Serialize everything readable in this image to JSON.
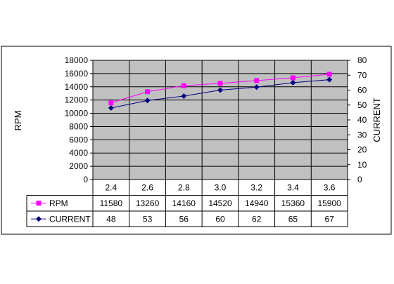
{
  "chart_data": {
    "type": "line",
    "x": [
      2.4,
      2.6,
      2.8,
      3.0,
      3.2,
      3.4,
      3.6
    ],
    "x_labels": [
      "2.4",
      "2.6",
      "2.8",
      "3.0",
      "3.2",
      "3.4",
      "3.6"
    ],
    "series": [
      {
        "name": "RPM",
        "axis": "left",
        "values": [
          11580,
          13260,
          14160,
          14520,
          14940,
          15360,
          15900
        ],
        "color": "#ff00ff",
        "marker": "square"
      },
      {
        "name": "CURRENT",
        "axis": "right",
        "values": [
          48,
          53,
          56,
          60,
          62,
          65,
          67
        ],
        "color": "#000080",
        "marker": "diamond"
      }
    ],
    "ylabel_left": "RPM",
    "ylabel_right": "CURRENT",
    "ylim_left": [
      0,
      18000
    ],
    "ylim_right": [
      0,
      80
    ],
    "yticks_left": [
      "0",
      "2000",
      "4000",
      "6000",
      "8000",
      "10000",
      "12000",
      "14000",
      "16000",
      "18000"
    ],
    "yticks_right": [
      "0",
      "10",
      "20",
      "30",
      "40",
      "50",
      "60",
      "70",
      "80"
    ],
    "plot_background": "#c0c0c0",
    "grid": true,
    "data_table": true
  }
}
